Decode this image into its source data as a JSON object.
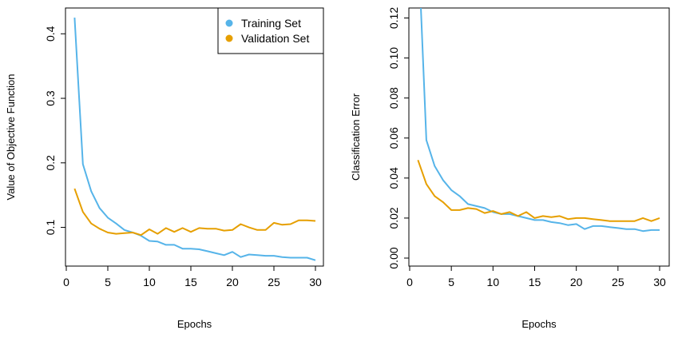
{
  "colors": {
    "training": "#56B4E9",
    "validation": "#E69F00"
  },
  "chart_data": [
    {
      "type": "line",
      "xlabel": "Epochs",
      "ylabel": "Value of Objective Function",
      "xlim": [
        0,
        30
      ],
      "ylim": [
        0.04,
        0.44
      ],
      "xticks": [
        "0",
        "5",
        "10",
        "15",
        "20",
        "25",
        "30"
      ],
      "xtick_values": [
        0,
        5,
        10,
        15,
        20,
        25,
        30
      ],
      "yticks": [
        "0.1",
        "0.2",
        "0.3",
        "0.4"
      ],
      "ytick_values": [
        0.1,
        0.2,
        0.3,
        0.4
      ],
      "legend": {
        "placement": "top-right",
        "entries": [
          "Training Set",
          "Validation Set"
        ]
      },
      "x": [
        1,
        2,
        3,
        4,
        5,
        6,
        7,
        8,
        9,
        10,
        11,
        12,
        13,
        14,
        15,
        16,
        17,
        18,
        19,
        20,
        21,
        22,
        23,
        24,
        25,
        26,
        27,
        28,
        29,
        30
      ],
      "series": [
        {
          "name": "Training Set",
          "values": [
            0.425,
            0.198,
            0.156,
            0.13,
            0.115,
            0.106,
            0.096,
            0.092,
            0.087,
            0.079,
            0.078,
            0.073,
            0.073,
            0.067,
            0.067,
            0.066,
            0.063,
            0.06,
            0.057,
            0.062,
            0.054,
            0.058,
            0.057,
            0.056,
            0.056,
            0.054,
            0.053,
            0.053,
            0.053,
            0.049
          ]
        },
        {
          "name": "Validation Set",
          "values": [
            0.16,
            0.124,
            0.106,
            0.098,
            0.092,
            0.09,
            0.091,
            0.092,
            0.088,
            0.097,
            0.09,
            0.099,
            0.093,
            0.099,
            0.093,
            0.099,
            0.098,
            0.098,
            0.095,
            0.096,
            0.105,
            0.1,
            0.096,
            0.096,
            0.107,
            0.104,
            0.105,
            0.111,
            0.111,
            0.11
          ]
        }
      ]
    },
    {
      "type": "line",
      "xlabel": "Epochs",
      "ylabel": "Classification Error",
      "xlim": [
        0,
        30
      ],
      "ylim": [
        -0.004,
        0.125
      ],
      "xticks": [
        "0",
        "5",
        "10",
        "15",
        "20",
        "25",
        "30"
      ],
      "xtick_values": [
        0,
        5,
        10,
        15,
        20,
        25,
        30
      ],
      "yticks": [
        "0.00",
        "0.02",
        "0.04",
        "0.06",
        "0.08",
        "0.10",
        "0.12"
      ],
      "ytick_values": [
        0,
        0.02,
        0.04,
        0.06,
        0.08,
        0.1,
        0.12
      ],
      "x": [
        1,
        2,
        3,
        4,
        5,
        6,
        7,
        8,
        9,
        10,
        11,
        12,
        13,
        14,
        15,
        16,
        17,
        18,
        19,
        20,
        21,
        22,
        23,
        24,
        25,
        26,
        27,
        28,
        29,
        30
      ],
      "series": [
        {
          "name": "Training Set",
          "values": [
            0.16,
            0.059,
            0.046,
            0.039,
            0.034,
            0.031,
            0.027,
            0.026,
            0.025,
            0.023,
            0.022,
            0.022,
            0.021,
            0.02,
            0.019,
            0.019,
            0.018,
            0.0175,
            0.0165,
            0.017,
            0.0145,
            0.016,
            0.016,
            0.0155,
            0.015,
            0.0145,
            0.0145,
            0.0135,
            0.014,
            0.014
          ]
        },
        {
          "name": "Validation Set",
          "values": [
            0.049,
            0.037,
            0.031,
            0.028,
            0.024,
            0.024,
            0.025,
            0.0245,
            0.0225,
            0.0235,
            0.022,
            0.023,
            0.021,
            0.023,
            0.02,
            0.021,
            0.0205,
            0.021,
            0.0195,
            0.02,
            0.02,
            0.0195,
            0.019,
            0.0185,
            0.0185,
            0.0185,
            0.0185,
            0.02,
            0.0185,
            0.02
          ]
        }
      ]
    }
  ]
}
